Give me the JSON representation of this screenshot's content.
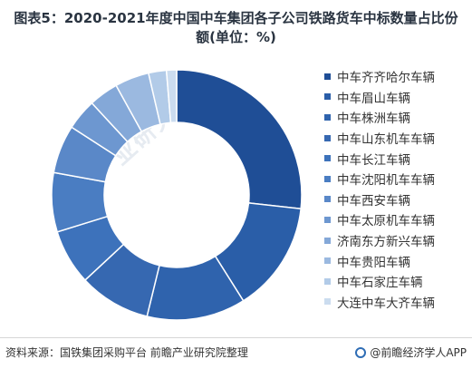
{
  "title": "图表5：2020-2021年度中国中车集团各子公司铁路货车中标数量占比份额(单位：%)",
  "watermark": "前瞻产业研究院",
  "footer": {
    "source": "资料来源：国铁集团采购平台 前瞻产业研究院整理",
    "brand": "@前瞻经济学人APP"
  },
  "chart_data": {
    "type": "pie",
    "donut": true,
    "title": "图表5：2020-2021年度中国中车集团各子公司铁路货车中标数量占比份额(单位：%)",
    "categories": [
      "中车齐齐哈尔车辆",
      "中车眉山车辆",
      "中车株洲车辆",
      "中车山东机车车辆",
      "中车长江车辆",
      "中车沈阳机车车辆",
      "中车西安车辆",
      "中车太原机车车辆",
      "济南东方新兴车辆",
      "中车贵阳车辆",
      "中车石家庄车辆",
      "大连中车大齐车辆"
    ],
    "values": [
      26.6,
      14.2,
      12.7,
      9.2,
      7.1,
      7.6,
      6.2,
      4.0,
      3.8,
      4.4,
      2.3,
      1.3
    ],
    "colors": [
      "#1f4e96",
      "#2a5ea8",
      "#2f63ad",
      "#3668b1",
      "#3d72bb",
      "#4a7dc2",
      "#5a88c8",
      "#6d97d0",
      "#84a8d8",
      "#9bb9e0",
      "#b2cbe8",
      "#cbdcef"
    ],
    "legend_position": "right"
  }
}
